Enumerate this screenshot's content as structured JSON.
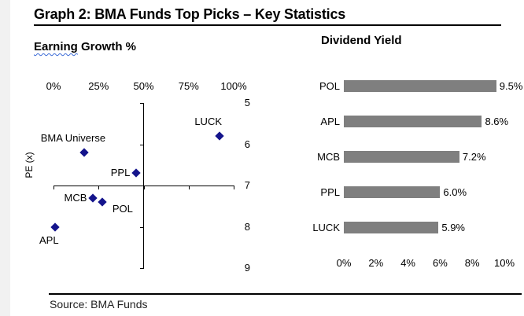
{
  "page": {
    "title": "Graph 2: BMA Funds Top Picks – Key Statistics",
    "source": "Source: BMA Funds"
  },
  "colors": {
    "marker_navy": "#14148c",
    "bar_gray": "#7f7f7f",
    "page_edge_gray": "#f1f1f1",
    "spellcheck_squiggle_blue": "#3b6bd6",
    "text_black": "#000000"
  },
  "chart_data": [
    {
      "type": "scatter",
      "title": "Earning Growth %",
      "title_wavy_word": "Earning",
      "title_rest": " Growth %",
      "ylabel": "PE (x)",
      "x_axis_position": "top",
      "x_ticks": [
        "0%",
        "25%",
        "50%",
        "75%",
        "100%"
      ],
      "x_tick_values": [
        0,
        25,
        50,
        75,
        100
      ],
      "xlim": [
        0,
        100
      ],
      "y_ticks": [
        "5",
        "6",
        "7",
        "8",
        "9"
      ],
      "y_tick_values": [
        5,
        6,
        7,
        8,
        9
      ],
      "ylim": [
        5,
        9
      ],
      "y_axis_inverted": true,
      "y_axis_labels_side": "right",
      "axes_cross_at": {
        "x_pct": 50,
        "pe": 7
      },
      "grid": false,
      "marker": "diamond",
      "points": [
        {
          "label": "LUCK",
          "earning_growth_pct": 92,
          "pe": 5.8,
          "label_pos": "above-left"
        },
        {
          "label": "BMA Universe",
          "earning_growth_pct": 17,
          "pe": 6.2,
          "label_pos": "above-left"
        },
        {
          "label": "PPL",
          "earning_growth_pct": 46,
          "pe": 6.7,
          "label_pos": "left"
        },
        {
          "label": "MCB",
          "earning_growth_pct": 22,
          "pe": 7.3,
          "label_pos": "left"
        },
        {
          "label": "POL",
          "earning_growth_pct": 27,
          "pe": 7.4,
          "label_pos": "right-below"
        },
        {
          "label": "APL",
          "earning_growth_pct": 1,
          "pe": 8.0,
          "label_pos": "below-left"
        }
      ]
    },
    {
      "type": "bar",
      "orientation": "horizontal",
      "title": "Dividend Yield",
      "categories": [
        "POL",
        "APL",
        "MCB",
        "PPL",
        "LUCK"
      ],
      "values": [
        9.5,
        8.6,
        7.2,
        6.0,
        5.9
      ],
      "value_labels": [
        "9.5%",
        "8.6%",
        "7.2%",
        "6.0%",
        "5.9%"
      ],
      "x_ticks": [
        "0%",
        "2%",
        "4%",
        "6%",
        "8%",
        "10%"
      ],
      "x_tick_values": [
        0,
        2,
        4,
        6,
        8,
        10
      ],
      "xlim": [
        0,
        10
      ],
      "grid": false,
      "legend": false
    }
  ]
}
